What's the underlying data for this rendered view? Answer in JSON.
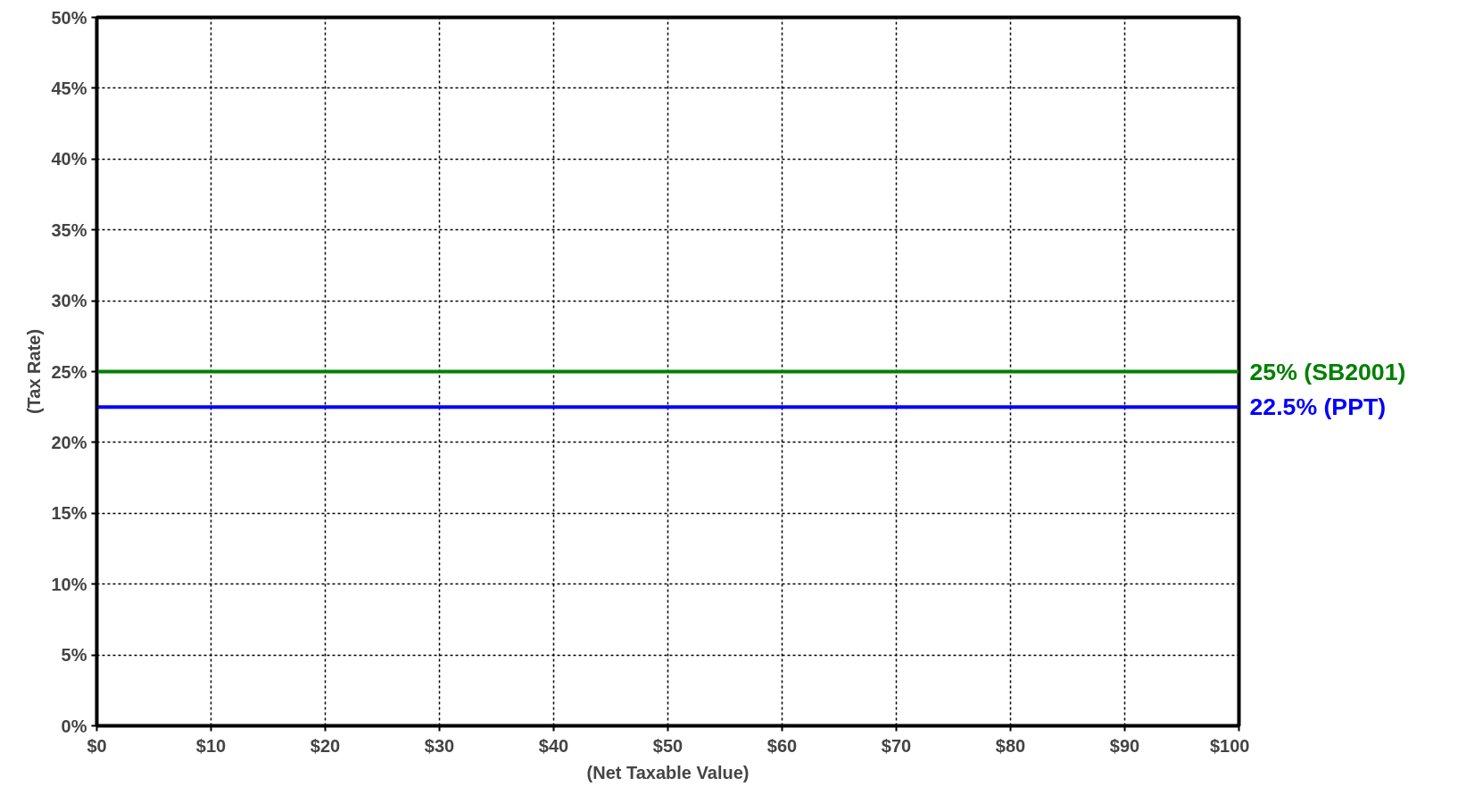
{
  "chart_data": {
    "type": "line",
    "xlabel": "(Net Taxable Value)",
    "ylabel": "(Tax Rate)",
    "x": [
      0,
      100
    ],
    "series": [
      {
        "name": "25% (SB2001)",
        "color": "#008000",
        "values": [
          25,
          25
        ]
      },
      {
        "name": "22.5% (PPT)",
        "color": "#0000ff",
        "values": [
          22.5,
          22.5
        ]
      }
    ],
    "xlim": [
      0,
      100
    ],
    "ylim": [
      0,
      50
    ],
    "xticks": [
      {
        "value": 0,
        "label": "$0"
      },
      {
        "value": 10,
        "label": "$10"
      },
      {
        "value": 20,
        "label": "$20"
      },
      {
        "value": 30,
        "label": "$30"
      },
      {
        "value": 40,
        "label": "$40"
      },
      {
        "value": 50,
        "label": "$50"
      },
      {
        "value": 60,
        "label": "$60"
      },
      {
        "value": 70,
        "label": "$70"
      },
      {
        "value": 80,
        "label": "$80"
      },
      {
        "value": 90,
        "label": "$90"
      },
      {
        "value": 100,
        "label": "$100"
      }
    ],
    "yticks": [
      {
        "value": 0,
        "label": "0%"
      },
      {
        "value": 5,
        "label": "5%"
      },
      {
        "value": 10,
        "label": "10%"
      },
      {
        "value": 15,
        "label": "15%"
      },
      {
        "value": 20,
        "label": "20%"
      },
      {
        "value": 25,
        "label": "25%"
      },
      {
        "value": 30,
        "label": "30%"
      },
      {
        "value": 35,
        "label": "35%"
      },
      {
        "value": 40,
        "label": "40%"
      },
      {
        "value": 45,
        "label": "45%"
      },
      {
        "value": 50,
        "label": "50%"
      }
    ],
    "grid": true,
    "marker": "none",
    "line_style": "solid"
  }
}
